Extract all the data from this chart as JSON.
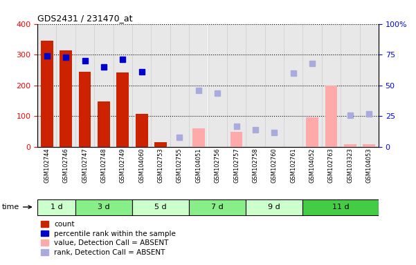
{
  "title": "GDS2431 / 231470_at",
  "samples": [
    "GSM102744",
    "GSM102746",
    "GSM102747",
    "GSM102748",
    "GSM102749",
    "GSM104060",
    "GSM102753",
    "GSM102755",
    "GSM104051",
    "GSM102756",
    "GSM102757",
    "GSM102758",
    "GSM102760",
    "GSM102761",
    "GSM104052",
    "GSM102763",
    "GSM103323",
    "GSM104053"
  ],
  "time_groups": [
    {
      "label": "1 d",
      "start": 0,
      "end": 1,
      "color": "#ccffcc"
    },
    {
      "label": "3 d",
      "start": 2,
      "end": 4,
      "color": "#88ee88"
    },
    {
      "label": "5 d",
      "start": 5,
      "end": 7,
      "color": "#ccffcc"
    },
    {
      "label": "7 d",
      "start": 8,
      "end": 10,
      "color": "#88ee88"
    },
    {
      "label": "9 d",
      "start": 11,
      "end": 13,
      "color": "#ccffcc"
    },
    {
      "label": "11 d",
      "start": 14,
      "end": 17,
      "color": "#44cc44"
    }
  ],
  "count_values": [
    345,
    315,
    245,
    147,
    243,
    107,
    17,
    null,
    null,
    null,
    null,
    null,
    null,
    null,
    null,
    null,
    null,
    null
  ],
  "count_absent_values": [
    null,
    null,
    null,
    null,
    null,
    null,
    null,
    null,
    60,
    null,
    50,
    null,
    null,
    null,
    97,
    200,
    10,
    10
  ],
  "percentile_values": [
    74,
    73,
    70,
    65,
    71,
    61,
    null,
    null,
    null,
    null,
    null,
    null,
    null,
    null,
    null,
    null,
    null,
    null
  ],
  "rank_absent_values": [
    null,
    null,
    null,
    null,
    null,
    null,
    null,
    8,
    46,
    44,
    17,
    14,
    12,
    60,
    68,
    null,
    26,
    27
  ],
  "ylim_left": [
    0,
    400
  ],
  "ylim_right": [
    0,
    100
  ],
  "yticks_left": [
    0,
    100,
    200,
    300,
    400
  ],
  "yticks_right": [
    0,
    25,
    50,
    75,
    100
  ],
  "count_color": "#cc2200",
  "count_absent_color": "#ffaaaa",
  "percentile_color": "#0000cc",
  "rank_absent_color": "#aaaadd",
  "plot_bg_color": "#e8e8e8",
  "col_sep_color": "#cccccc",
  "legend_items": [
    {
      "label": "count",
      "color": "#cc2200"
    },
    {
      "label": "percentile rank within the sample",
      "color": "#0000cc"
    },
    {
      "label": "value, Detection Call = ABSENT",
      "color": "#ffaaaa"
    },
    {
      "label": "rank, Detection Call = ABSENT",
      "color": "#aaaadd"
    }
  ],
  "time_label_color": "#888888",
  "group_colors_alt": [
    "#ccffcc",
    "#88ee88",
    "#ccffcc",
    "#88ee88",
    "#ccffcc",
    "#44cc44"
  ]
}
